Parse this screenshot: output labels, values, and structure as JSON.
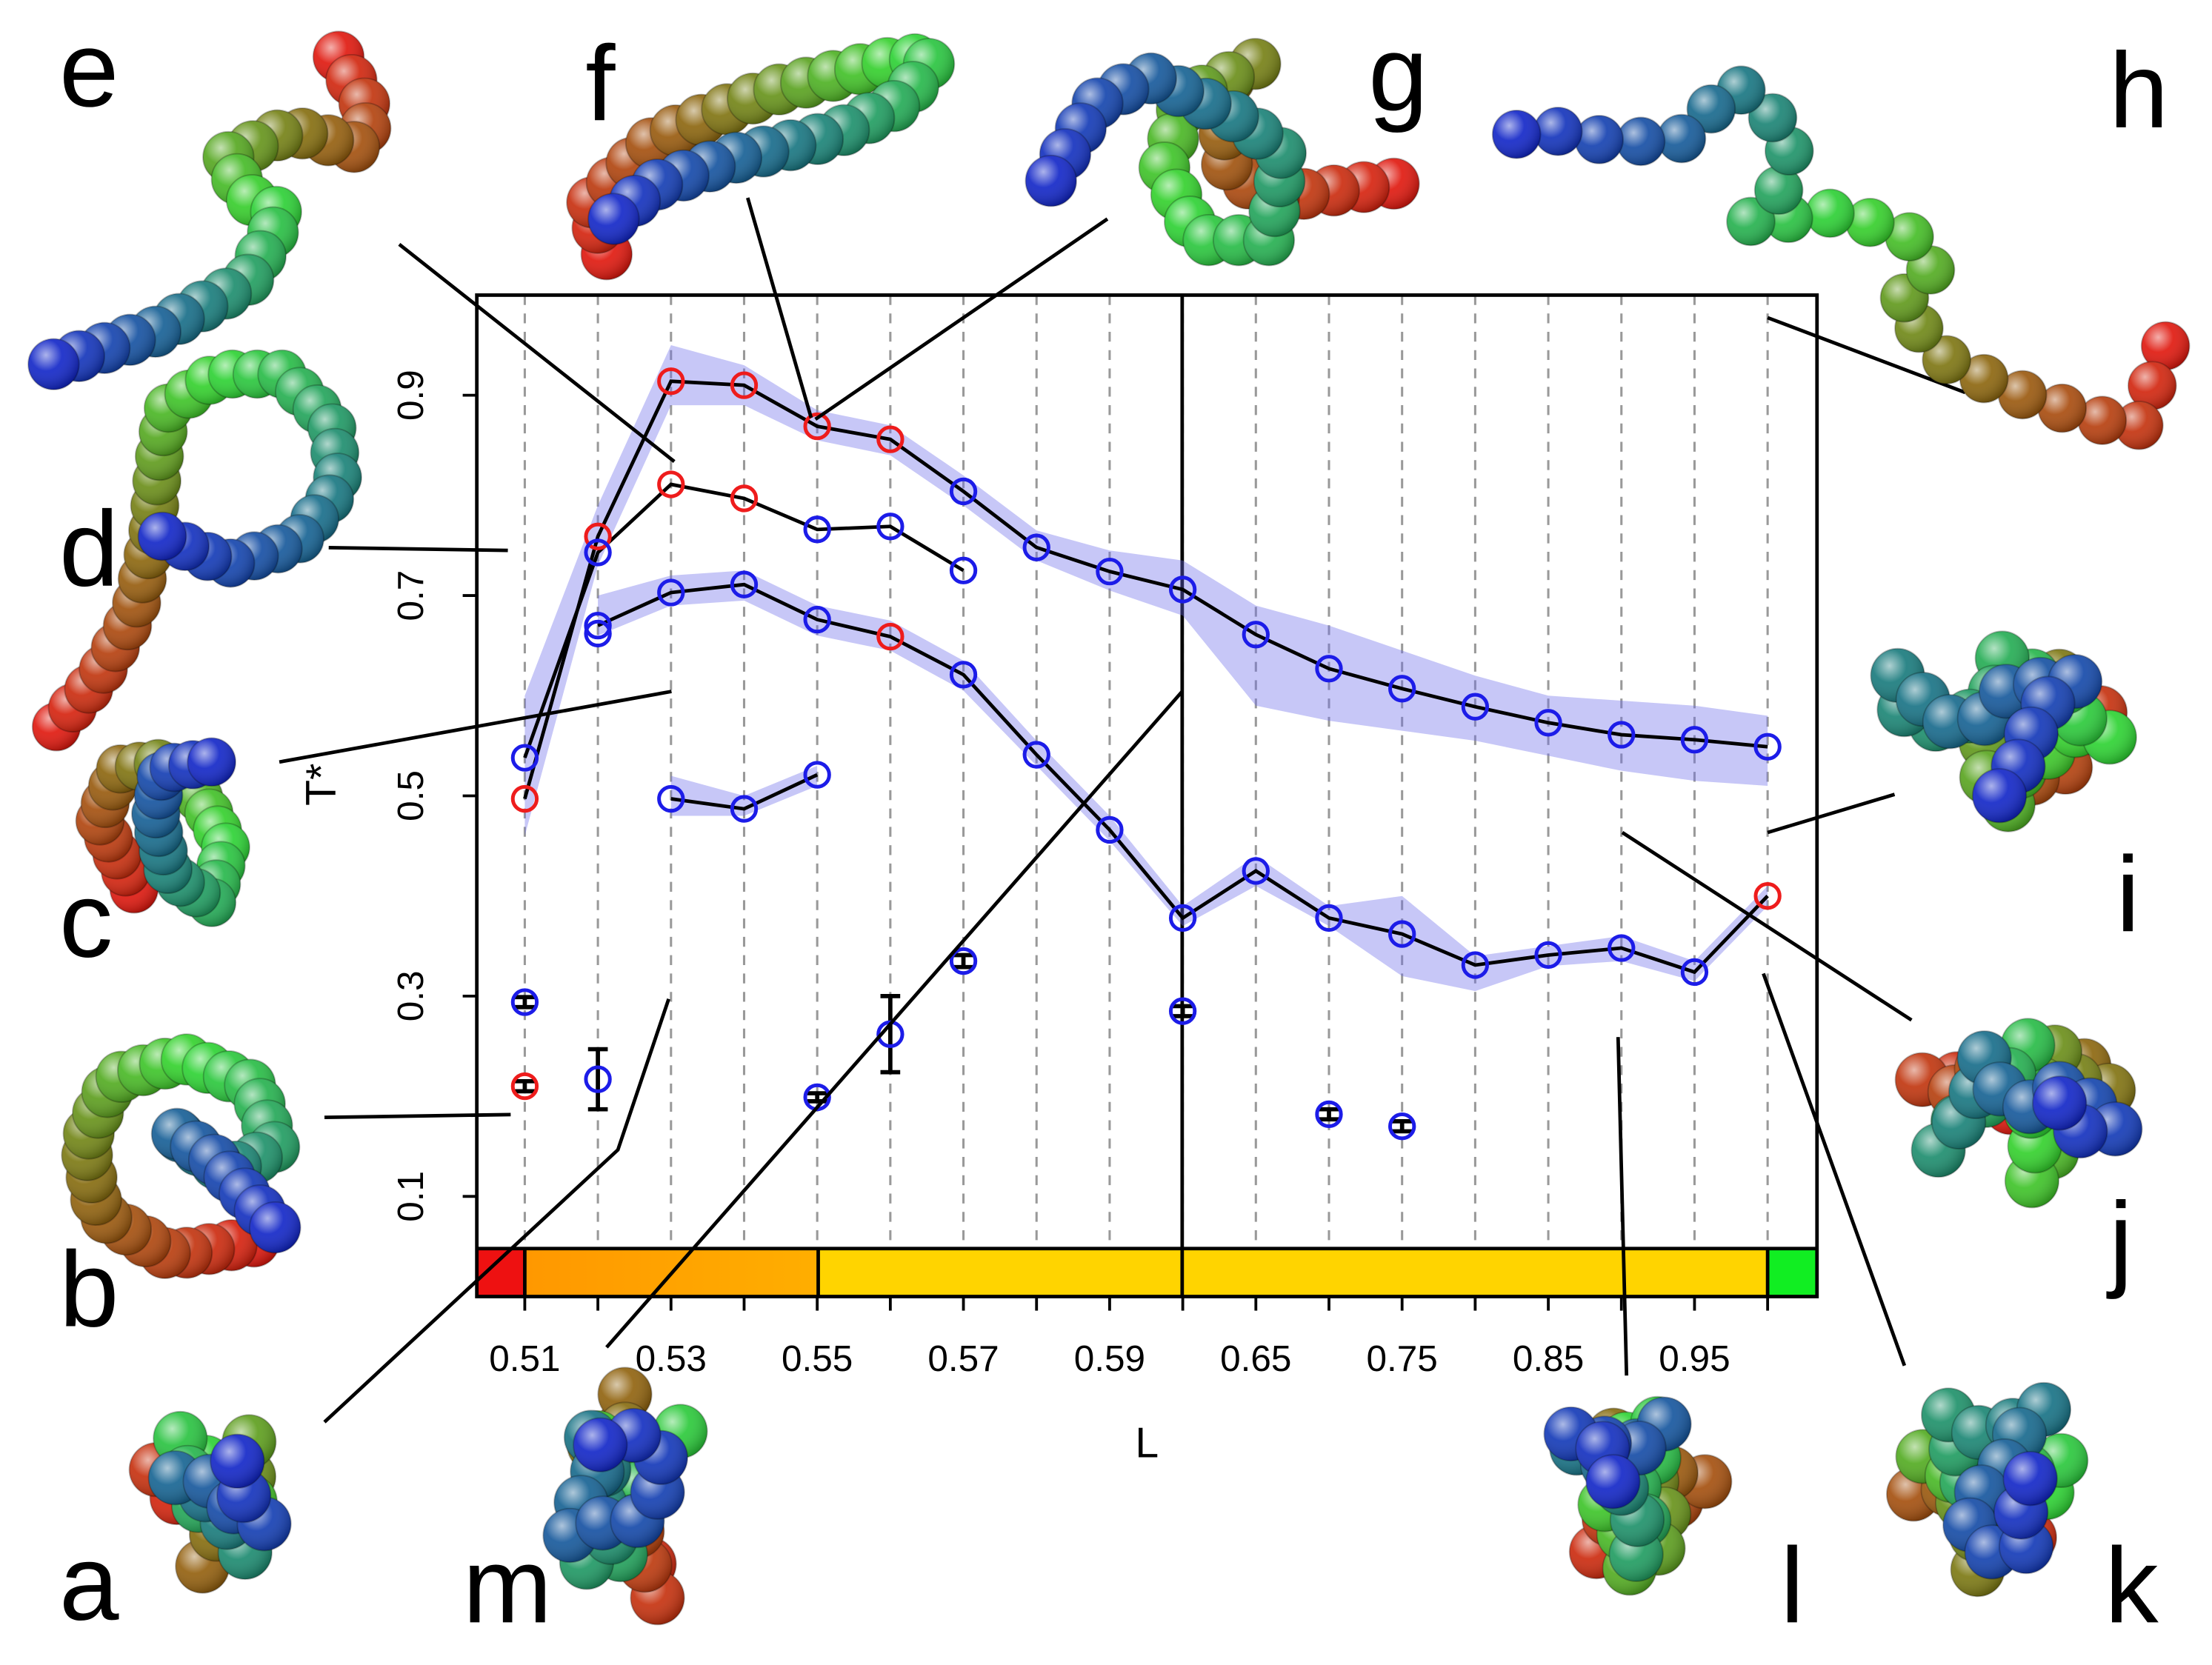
{
  "chart_data": {
    "type": "line",
    "x_label": "L",
    "y_label": "T*",
    "categories": [
      "0.51",
      null,
      "0.53",
      null,
      "0.55",
      null,
      "0.57",
      null,
      "0.59",
      null,
      "0.65",
      null,
      "0.75",
      null,
      "0.85",
      null,
      "0.95",
      null
    ],
    "ylim": [
      0,
      1.0
    ],
    "yticks": [
      0.1,
      0.3,
      0.5,
      0.7,
      0.9
    ],
    "grid": true,
    "band_color": "#6b6bea",
    "series": [
      {
        "color": "#000000",
        "line": true,
        "values": [
          0.497,
          0.759,
          0.914,
          0.91,
          0.869,
          0.856,
          0.804,
          0.748,
          0.724,
          0.706,
          0.661,
          0.627,
          0.607,
          0.589,
          0.573,
          0.561,
          0.556,
          0.549
        ],
        "lower": [
          0.46,
          0.73,
          0.89,
          0.89,
          0.855,
          0.84,
          0.79,
          0.735,
          0.705,
          0.68,
          0.59,
          0.575,
          0.565,
          0.555,
          0.54,
          0.525,
          0.515,
          0.51
        ],
        "upper": [
          0.6,
          0.79,
          0.95,
          0.93,
          0.885,
          0.87,
          0.82,
          0.765,
          0.745,
          0.735,
          0.69,
          0.67,
          0.645,
          0.62,
          0.6,
          0.595,
          0.59,
          0.58
        ],
        "point_colors": [
          "#ee1c1c",
          "#ee1c1c",
          "#ee1c1c",
          "#ee1c1c",
          "#ee1c1c",
          "#ee1c1c",
          "#1c1ce8",
          "#1c1ce8",
          "#1c1ce8",
          "#1c1ce8",
          "#1c1ce8",
          "#1c1ce8",
          "#1c1ce8",
          "#1c1ce8",
          "#1c1ce8",
          "#1c1ce8",
          "#1c1ce8",
          "#1c1ce8"
        ]
      },
      {
        "color": "#000000",
        "line": true,
        "values": [
          0.538,
          0.743,
          0.811,
          0.797,
          0.766,
          0.769,
          0.725,
          null,
          null,
          null,
          null,
          null,
          null,
          null,
          null,
          null,
          null,
          null
        ],
        "point_colors": [
          "#1c1ce8",
          "#1c1ce8",
          "#ee1c1c",
          "#ee1c1c",
          "#1c1ce8",
          "#1c1ce8",
          "#1c1ce8",
          null,
          null,
          null,
          null,
          null,
          null,
          null,
          null,
          null,
          null,
          null
        ]
      },
      {
        "color": "#000000",
        "line": true,
        "values": [
          null,
          0.67,
          0.703,
          0.711,
          0.676,
          0.659,
          0.621,
          0.541,
          0.466,
          0.378,
          0.425,
          0.378,
          0.362,
          0.331,
          0.341,
          0.348,
          0.324,
          0.4
        ],
        "lower": [
          null,
          0.66,
          0.69,
          0.695,
          0.66,
          0.645,
          0.605,
          0.53,
          0.455,
          0.37,
          0.41,
          0.37,
          0.32,
          0.305,
          0.33,
          0.335,
          0.315,
          0.39
        ],
        "upper": [
          null,
          0.7,
          0.72,
          0.725,
          0.69,
          0.675,
          0.635,
          0.555,
          0.48,
          0.39,
          0.44,
          0.39,
          0.4,
          0.34,
          0.35,
          0.36,
          0.335,
          0.41
        ],
        "point_colors": [
          null,
          "#1c1ce8",
          "#1c1ce8",
          "#1c1ce8",
          "#1c1ce8",
          "#ee1c1c",
          "#1c1ce8",
          "#1c1ce8",
          "#1c1ce8",
          "#1c1ce8",
          "#1c1ce8",
          "#1c1ce8",
          "#1c1ce8",
          "#1c1ce8",
          "#1c1ce8",
          "#1c1ce8",
          "#1c1ce8",
          "#ee1c1c"
        ]
      },
      {
        "color": "#000000",
        "line": true,
        "values": [
          null,
          null,
          0.497,
          0.487,
          0.521,
          null,
          null,
          null,
          null,
          null,
          null,
          null,
          null,
          null,
          null,
          null,
          null,
          null
        ],
        "lower": [
          null,
          null,
          0.48,
          0.48,
          0.51,
          null,
          null,
          null,
          null,
          null,
          null,
          null,
          null,
          null,
          null,
          null,
          null,
          null
        ],
        "upper": [
          null,
          null,
          0.52,
          0.5,
          0.53,
          null,
          null,
          null,
          null,
          null,
          null,
          null,
          null,
          null,
          null,
          null,
          null,
          null
        ],
        "point_colors": [
          null,
          null,
          "#1c1ce8",
          "#1c1ce8",
          "#1c1ce8",
          null,
          null,
          null,
          null,
          null,
          null,
          null,
          null,
          null,
          null,
          null,
          null,
          null
        ]
      },
      {
        "color": "#000000",
        "line": false,
        "values": [
          0.294,
          0.217,
          null,
          null,
          0.199,
          0.262,
          0.335,
          null,
          null,
          0.285,
          null,
          0.182,
          0.17,
          null,
          null,
          null,
          null,
          null
        ],
        "errors": [
          0.005,
          0.03,
          null,
          null,
          0.004,
          0.038,
          0.006,
          null,
          null,
          0.005,
          null,
          0.005,
          0.005,
          null,
          null,
          null,
          null,
          null
        ],
        "point_colors": [
          "#1c1ce8",
          "#1c1ce8",
          null,
          null,
          "#1c1ce8",
          "#1c1ce8",
          "#1c1ce8",
          null,
          null,
          "#1c1ce8",
          null,
          "#1c1ce8",
          "#1c1ce8",
          null,
          null,
          null,
          null,
          null
        ]
      },
      {
        "color": "#000000",
        "line": false,
        "values": [
          0.21,
          null,
          null,
          null,
          null,
          null,
          null,
          null,
          null,
          null,
          null,
          null,
          null,
          null,
          null,
          null,
          null,
          null
        ],
        "errors": [
          0.005,
          null,
          null,
          null,
          null,
          null,
          null,
          null,
          null,
          null,
          null,
          null,
          null,
          null,
          null,
          null,
          null,
          null
        ],
        "point_colors": [
          "#ee1c1c",
          null,
          null,
          null,
          null,
          null,
          null,
          null,
          null,
          null,
          null,
          null,
          null,
          null,
          null,
          null,
          null,
          null
        ]
      },
      {
        "color": "#000000",
        "line": false,
        "values": [
          null,
          0.662,
          null,
          null,
          null,
          null,
          null,
          null,
          null,
          null,
          null,
          null,
          null,
          null,
          null,
          null,
          null,
          null
        ],
        "point_colors": [
          null,
          "#1c1ce8",
          null,
          null,
          null,
          null,
          null,
          null,
          null,
          null,
          null,
          null,
          null,
          null,
          null,
          null,
          null,
          null
        ]
      }
    ],
    "annotations": [
      "a",
      "b",
      "c",
      "d",
      "e",
      "f",
      "g",
      "h",
      "i",
      "j",
      "k",
      "l",
      "m"
    ]
  }
}
